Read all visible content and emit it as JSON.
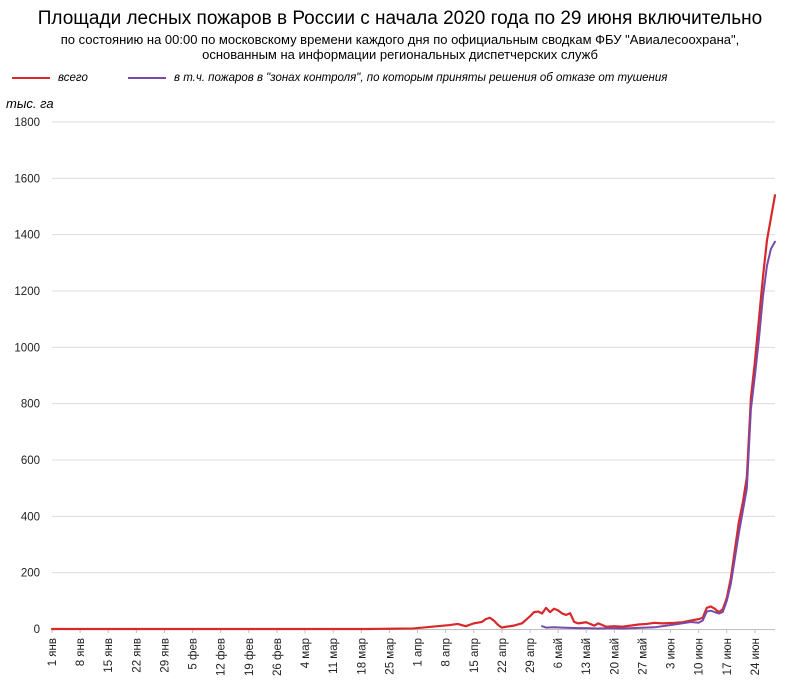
{
  "header": {
    "title": "Площади лесных пожаров в России с начала 2020 года по 29 июня включительно",
    "subtitle_line1": "по состоянию на 00:00 по московскому времени каждого дня по официальным сводкам ФБУ \"Авиалесоохрана\",",
    "subtitle_line2": "основанным на информации региональных диспетчерских служб"
  },
  "colors": {
    "total": "#d9282a",
    "control": "#7a4aa8",
    "grid": "#dcdcdc",
    "axis": "#bfbfbf"
  },
  "chart_data": {
    "type": "line",
    "ylabel": "тыс. га",
    "ylim": [
      0,
      1800
    ],
    "yticks": [
      0,
      200,
      400,
      600,
      800,
      1000,
      1200,
      1400,
      1600,
      1800
    ],
    "xlim": [
      "2020-01-01",
      "2020-06-29"
    ],
    "xticks": [
      {
        "label": "1 янв",
        "date": "2020-01-01"
      },
      {
        "label": "8 янв",
        "date": "2020-01-08"
      },
      {
        "label": "15 янв",
        "date": "2020-01-15"
      },
      {
        "label": "22 янв",
        "date": "2020-01-22"
      },
      {
        "label": "29 янв",
        "date": "2020-01-29"
      },
      {
        "label": "5 фев",
        "date": "2020-02-05"
      },
      {
        "label": "12 фев",
        "date": "2020-02-12"
      },
      {
        "label": "19 фев",
        "date": "2020-02-19"
      },
      {
        "label": "26 фев",
        "date": "2020-02-26"
      },
      {
        "label": "4 мар",
        "date": "2020-03-04"
      },
      {
        "label": "11 мар",
        "date": "2020-03-11"
      },
      {
        "label": "18 мар",
        "date": "2020-03-18"
      },
      {
        "label": "25 мар",
        "date": "2020-03-25"
      },
      {
        "label": "1 апр",
        "date": "2020-04-01"
      },
      {
        "label": "8 апр",
        "date": "2020-04-08"
      },
      {
        "label": "15 апр",
        "date": "2020-04-15"
      },
      {
        "label": "22 апр",
        "date": "2020-04-22"
      },
      {
        "label": "29 апр",
        "date": "2020-04-29"
      },
      {
        "label": "6 май",
        "date": "2020-05-06"
      },
      {
        "label": "13 май",
        "date": "2020-05-13"
      },
      {
        "label": "20 май",
        "date": "2020-05-20"
      },
      {
        "label": "27 май",
        "date": "2020-05-27"
      },
      {
        "label": "3 июн",
        "date": "2020-06-03"
      },
      {
        "label": "10 июн",
        "date": "2020-06-10"
      },
      {
        "label": "17 июн",
        "date": "2020-06-17"
      },
      {
        "label": "24 июн",
        "date": "2020-06-24"
      }
    ],
    "grid": "horizontal",
    "legend_position": "top",
    "series": [
      {
        "name": "всего",
        "color": "#d9282a",
        "points": [
          [
            "2020-01-01",
            0
          ],
          [
            "2020-03-20",
            0
          ],
          [
            "2020-03-25",
            1
          ],
          [
            "2020-03-31",
            2
          ],
          [
            "2020-04-03",
            6
          ],
          [
            "2020-04-06",
            10
          ],
          [
            "2020-04-09",
            14
          ],
          [
            "2020-04-11",
            18
          ],
          [
            "2020-04-13",
            10
          ],
          [
            "2020-04-15",
            20
          ],
          [
            "2020-04-17",
            25
          ],
          [
            "2020-04-18",
            35
          ],
          [
            "2020-04-19",
            40
          ],
          [
            "2020-04-20",
            30
          ],
          [
            "2020-04-21",
            15
          ],
          [
            "2020-04-22",
            5
          ],
          [
            "2020-04-23",
            8
          ],
          [
            "2020-04-25",
            12
          ],
          [
            "2020-04-27",
            20
          ],
          [
            "2020-04-29",
            45
          ],
          [
            "2020-04-30",
            60
          ],
          [
            "2020-05-01",
            62
          ],
          [
            "2020-05-02",
            55
          ],
          [
            "2020-05-03",
            75
          ],
          [
            "2020-05-04",
            60
          ],
          [
            "2020-05-05",
            72
          ],
          [
            "2020-05-06",
            66
          ],
          [
            "2020-05-07",
            55
          ],
          [
            "2020-05-08",
            50
          ],
          [
            "2020-05-09",
            56
          ],
          [
            "2020-05-10",
            25
          ],
          [
            "2020-05-11",
            20
          ],
          [
            "2020-05-13",
            24
          ],
          [
            "2020-05-15",
            12
          ],
          [
            "2020-05-16",
            20
          ],
          [
            "2020-05-18",
            8
          ],
          [
            "2020-05-20",
            10
          ],
          [
            "2020-05-22",
            8
          ],
          [
            "2020-05-24",
            12
          ],
          [
            "2020-05-26",
            16
          ],
          [
            "2020-05-28",
            18
          ],
          [
            "2020-05-30",
            22
          ],
          [
            "2020-06-01",
            20
          ],
          [
            "2020-06-04",
            22
          ],
          [
            "2020-06-06",
            24
          ],
          [
            "2020-06-08",
            30
          ],
          [
            "2020-06-10",
            35
          ],
          [
            "2020-06-11",
            40
          ],
          [
            "2020-06-12",
            75
          ],
          [
            "2020-06-13",
            80
          ],
          [
            "2020-06-14",
            72
          ],
          [
            "2020-06-15",
            60
          ],
          [
            "2020-06-16",
            70
          ],
          [
            "2020-06-17",
            110
          ],
          [
            "2020-06-18",
            180
          ],
          [
            "2020-06-19",
            280
          ],
          [
            "2020-06-20",
            380
          ],
          [
            "2020-06-21",
            450
          ],
          [
            "2020-06-22",
            540
          ],
          [
            "2020-06-23",
            820
          ],
          [
            "2020-06-24",
            950
          ],
          [
            "2020-06-25",
            1100
          ],
          [
            "2020-06-26",
            1250
          ],
          [
            "2020-06-27",
            1380
          ],
          [
            "2020-06-28",
            1460
          ],
          [
            "2020-06-29",
            1540
          ]
        ]
      },
      {
        "name": "в т.ч. пожаров в \"зонах контроля\", по которым приняты решения об отказе от тушения",
        "color": "#7a4aa8",
        "points": [
          [
            "2020-05-02",
            10
          ],
          [
            "2020-05-03",
            5
          ],
          [
            "2020-05-05",
            6
          ],
          [
            "2020-05-07",
            5
          ],
          [
            "2020-05-09",
            4
          ],
          [
            "2020-05-11",
            3
          ],
          [
            "2020-05-13",
            3
          ],
          [
            "2020-05-16",
            2
          ],
          [
            "2020-05-19",
            3
          ],
          [
            "2020-05-22",
            2
          ],
          [
            "2020-05-26",
            4
          ],
          [
            "2020-05-30",
            6
          ],
          [
            "2020-06-02",
            12
          ],
          [
            "2020-06-05",
            18
          ],
          [
            "2020-06-08",
            25
          ],
          [
            "2020-06-10",
            22
          ],
          [
            "2020-06-11",
            30
          ],
          [
            "2020-06-12",
            62
          ],
          [
            "2020-06-13",
            65
          ],
          [
            "2020-06-14",
            60
          ],
          [
            "2020-06-15",
            55
          ],
          [
            "2020-06-16",
            60
          ],
          [
            "2020-06-17",
            100
          ],
          [
            "2020-06-18",
            160
          ],
          [
            "2020-06-19",
            250
          ],
          [
            "2020-06-20",
            340
          ],
          [
            "2020-06-21",
            420
          ],
          [
            "2020-06-22",
            500
          ],
          [
            "2020-06-23",
            780
          ],
          [
            "2020-06-24",
            900
          ],
          [
            "2020-06-25",
            1030
          ],
          [
            "2020-06-26",
            1180
          ],
          [
            "2020-06-27",
            1290
          ],
          [
            "2020-06-28",
            1350
          ],
          [
            "2020-06-29",
            1375
          ]
        ]
      }
    ]
  }
}
